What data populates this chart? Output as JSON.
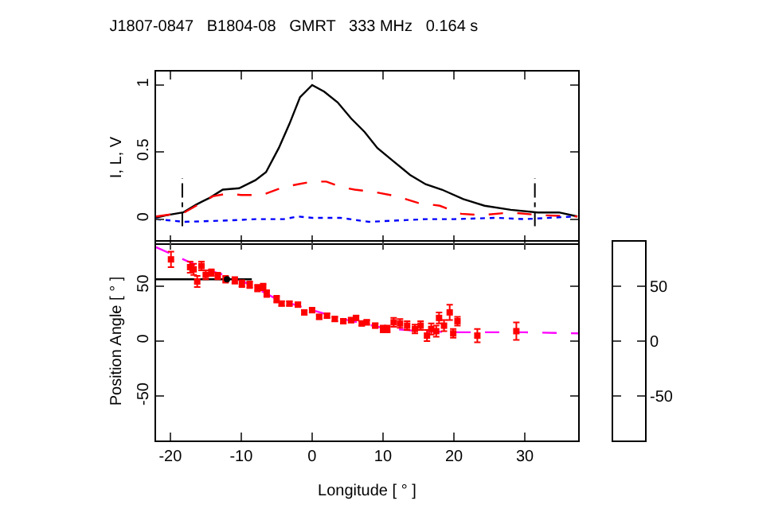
{
  "chart_data": [
    {
      "type": "line",
      "title": "J1807-0847   B1804-08   GMRT   333 MHz   0.164 s",
      "ylabel": "I, L, V",
      "xlim": [
        -22,
        37.5
      ],
      "xticks": [
        -20,
        -10,
        0,
        10,
        20,
        30
      ],
      "ylim": [
        -0.18,
        1.1
      ],
      "yticks": [
        0,
        0.5,
        1
      ],
      "tick_labels": "y",
      "ref_lines": [
        {
          "axis": "x",
          "value": -18.3,
          "color": "#000000",
          "line_style": "dashed"
        },
        {
          "axis": "x",
          "value": 31.4,
          "color": "#000000",
          "line_style": "dashed"
        }
      ],
      "series": [
        {
          "color": "#000000",
          "line_style": "solid",
          "x": [
            -22,
            -20.5,
            -18.2,
            -16.3,
            -14.4,
            -12.6,
            -10.3,
            -8,
            -6.5,
            -4.7,
            -3.2,
            -1.7,
            0,
            1.7,
            3.6,
            5.5,
            7.4,
            9.2,
            11.5,
            13.8,
            16,
            18.3,
            21.3,
            24.3,
            28,
            31.8,
            34.8,
            37.4
          ],
          "values": [
            0.01,
            0.03,
            0.05,
            0.11,
            0.16,
            0.22,
            0.23,
            0.29,
            0.35,
            0.53,
            0.71,
            0.91,
            1.0,
            0.95,
            0.87,
            0.75,
            0.65,
            0.53,
            0.43,
            0.33,
            0.26,
            0.22,
            0.15,
            0.1,
            0.07,
            0.05,
            0.05,
            0.02
          ]
        },
        {
          "color": "#ff0000",
          "line_style": "dashed",
          "x": [
            -22,
            -18,
            -14,
            -12,
            -10,
            -7,
            -4,
            -2,
            0,
            2,
            4,
            6,
            9,
            12,
            15,
            18,
            21,
            24,
            28,
            32,
            37.4
          ],
          "values": [
            0.02,
            0.05,
            0.17,
            0.19,
            0.18,
            0.18,
            0.24,
            0.26,
            0.28,
            0.28,
            0.24,
            0.22,
            0.2,
            0.17,
            0.12,
            0.1,
            0.04,
            0.03,
            0.05,
            0.03,
            0.02
          ]
        },
        {
          "color": "#0000ff",
          "line_style": "dotted",
          "x": [
            -22,
            -18,
            -12,
            -8,
            -4,
            -2,
            0,
            4,
            8,
            12,
            16,
            20,
            26,
            30,
            37
          ],
          "values": [
            0.0,
            -0.02,
            -0.01,
            0.0,
            0.0,
            0.02,
            0.01,
            0.01,
            -0.02,
            -0.01,
            0.0,
            0.0,
            0.01,
            0.0,
            0.02
          ]
        }
      ]
    },
    {
      "type": "scatter",
      "xlabel": "Longitude [ ° ]",
      "ylabel": "Position Angle [ ° ]",
      "xlim": [
        -22,
        37.5
      ],
      "xticks": [
        -20,
        -10,
        0,
        10,
        20,
        30
      ],
      "ylim": [
        -90,
        90
      ],
      "yticks": [
        -50,
        0,
        50
      ],
      "y2lim": [
        -90,
        90
      ],
      "y2ticks": [
        -50,
        0,
        50
      ],
      "series": [
        {
          "type": "line",
          "color": "#ff00ff",
          "line_style": "dashed",
          "x": [
            -22,
            -15,
            -10,
            -5,
            0,
            5,
            10,
            15,
            20,
            30,
            37.5
          ],
          "values": [
            85,
            65,
            55,
            38,
            28,
            19,
            12,
            9,
            8,
            8,
            7
          ]
        },
        {
          "type": "line",
          "color": "#000000",
          "line_style": "solid",
          "x": [
            -22,
            -8.5
          ],
          "values": [
            56,
            56
          ]
        },
        {
          "color": "#ff0000",
          "marker": "square",
          "x": [
            -19.9,
            -17.2,
            -16.7,
            -16.2,
            -15.6,
            -15,
            -14.2,
            -13.3,
            -12.2,
            -10.9,
            -9.9,
            -8.8,
            -7.7,
            -6.9,
            -6.4,
            -5,
            -4.3,
            -3.2,
            -2,
            -1.1,
            0,
            1,
            2.1,
            3.2,
            4.4,
            5.5,
            6.2,
            7,
            7.7,
            8.9,
            10,
            10.6,
            11.5,
            12.4,
            13.4,
            14.5,
            15.3,
            16.2,
            16.8,
            17.5,
            17.9,
            18.6,
            19.4,
            19.9,
            20.5,
            23.3,
            28.8
          ],
          "values": [
            74,
            67,
            65,
            54,
            68,
            60,
            62,
            59,
            56,
            55,
            52,
            51,
            48,
            49,
            43,
            38,
            34,
            34,
            33,
            26,
            28,
            22,
            23,
            20,
            18,
            19,
            21,
            16,
            17,
            14,
            11,
            11,
            17,
            16,
            14,
            11,
            14,
            5,
            11,
            9,
            21,
            14,
            26,
            7,
            18,
            5,
            9
          ],
          "errors": [
            7,
            5,
            5,
            5,
            4,
            4,
            3,
            3,
            3,
            3,
            3,
            3,
            3,
            3,
            3,
            3,
            2,
            2,
            2,
            2,
            2,
            2,
            2,
            2,
            2,
            2,
            2,
            2,
            2,
            2,
            3,
            3,
            4,
            4,
            4,
            4,
            4,
            5,
            5,
            5,
            5,
            5,
            7,
            4,
            4,
            6,
            8
          ]
        },
        {
          "color": "#000000",
          "marker": "circle",
          "x": [
            -12
          ],
          "values": [
            56
          ]
        }
      ]
    }
  ]
}
